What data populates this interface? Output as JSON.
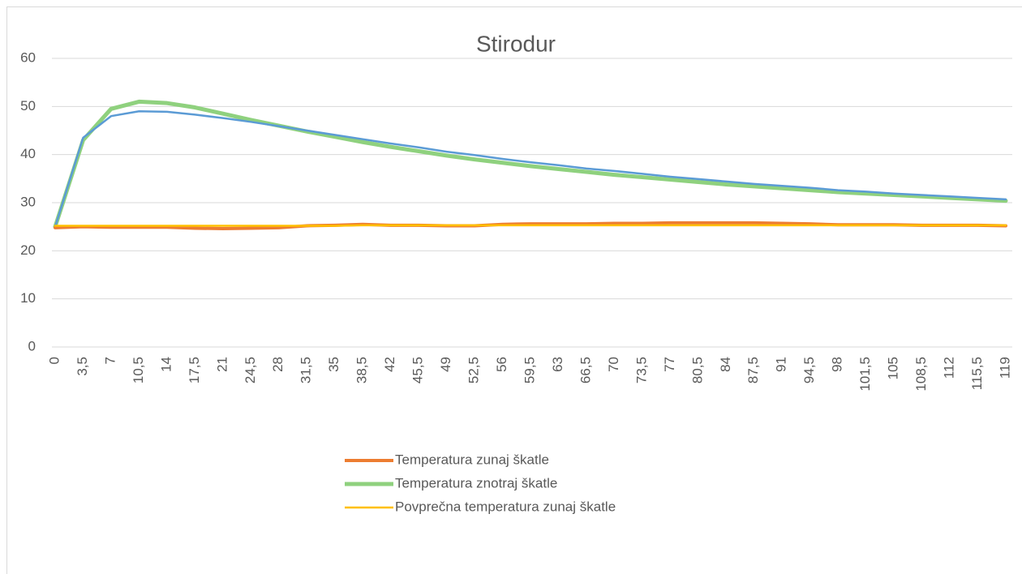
{
  "chart_data": {
    "type": "line",
    "title": "Stirodur",
    "categories": [
      "0",
      "3,5",
      "7",
      "10,5",
      "14",
      "17,5",
      "21",
      "24,5",
      "28",
      "31,5",
      "35",
      "38,5",
      "42",
      "45,5",
      "49",
      "52,5",
      "56",
      "59,5",
      "63",
      "66,5",
      "70",
      "73,5",
      "77",
      "80,5",
      "84",
      "87,5",
      "91",
      "94,5",
      "98",
      "101,5",
      "105",
      "108,5",
      "112",
      "115,5",
      "119"
    ],
    "series": [
      {
        "name": "Temperatura zunaj škatle",
        "color": "#ed7d31",
        "width": 4,
        "values": [
          24.8,
          25,
          24.9,
          24.9,
          24.9,
          24.7,
          24.6,
          24.7,
          24.8,
          25.2,
          25.3,
          25.5,
          25.3,
          25.3,
          25.2,
          25.2,
          25.5,
          25.6,
          25.6,
          25.6,
          25.7,
          25.7,
          25.8,
          25.8,
          25.8,
          25.8,
          25.7,
          25.6,
          25.4,
          25.4,
          25.4,
          25.3,
          25.3,
          25.3,
          25.2
        ]
      },
      {
        "name": "Temperatura znotraj škatle",
        "color": "#8fd17e",
        "width": 5,
        "values": [
          25,
          43,
          49.5,
          51,
          50.7,
          49.8,
          48.5,
          47.2,
          46,
          44.8,
          43.7,
          42.6,
          41.6,
          40.7,
          39.8,
          39,
          38.3,
          37.6,
          37,
          36.4,
          35.8,
          35.3,
          34.8,
          34.3,
          33.8,
          33.4,
          33,
          32.6,
          32.2,
          31.9,
          31.6,
          31.3,
          31,
          30.7,
          30.4
        ]
      },
      {
        "name": "Povprečna temperatura zunaj škatle",
        "color": "#ffc000",
        "width": 2.5,
        "values": [
          25.2,
          25.2,
          25.2,
          25.2,
          25.2,
          25.2,
          25.2,
          25.2,
          25.2,
          25.2,
          25.2,
          25.3,
          25.3,
          25.3,
          25.3,
          25.3,
          25.3,
          25.3,
          25.3,
          25.3,
          25.3,
          25.3,
          25.3,
          25.3,
          25.3,
          25.3,
          25.3,
          25.3,
          25.3,
          25.3,
          25.3,
          25.3,
          25.3,
          25.3,
          25.3
        ]
      },
      {
        "color": "#5b9bd5",
        "width": 2.5,
        "values": [
          25,
          43.5,
          48,
          49,
          48.9,
          48.3,
          47.6,
          46.8,
          45.9,
          45,
          44.1,
          43.2,
          42.3,
          41.5,
          40.6,
          39.9,
          39.1,
          38.4,
          37.8,
          37.1,
          36.6,
          36,
          35.4,
          34.9,
          34.4,
          33.9,
          33.5,
          33.1,
          32.6,
          32.3,
          31.9,
          31.6,
          31.3,
          31,
          30.7
        ]
      }
    ],
    "ylim": [
      0,
      60
    ],
    "yticks": [
      0,
      10,
      20,
      30,
      40,
      50,
      60
    ],
    "grid": true,
    "legend": "bottom"
  }
}
